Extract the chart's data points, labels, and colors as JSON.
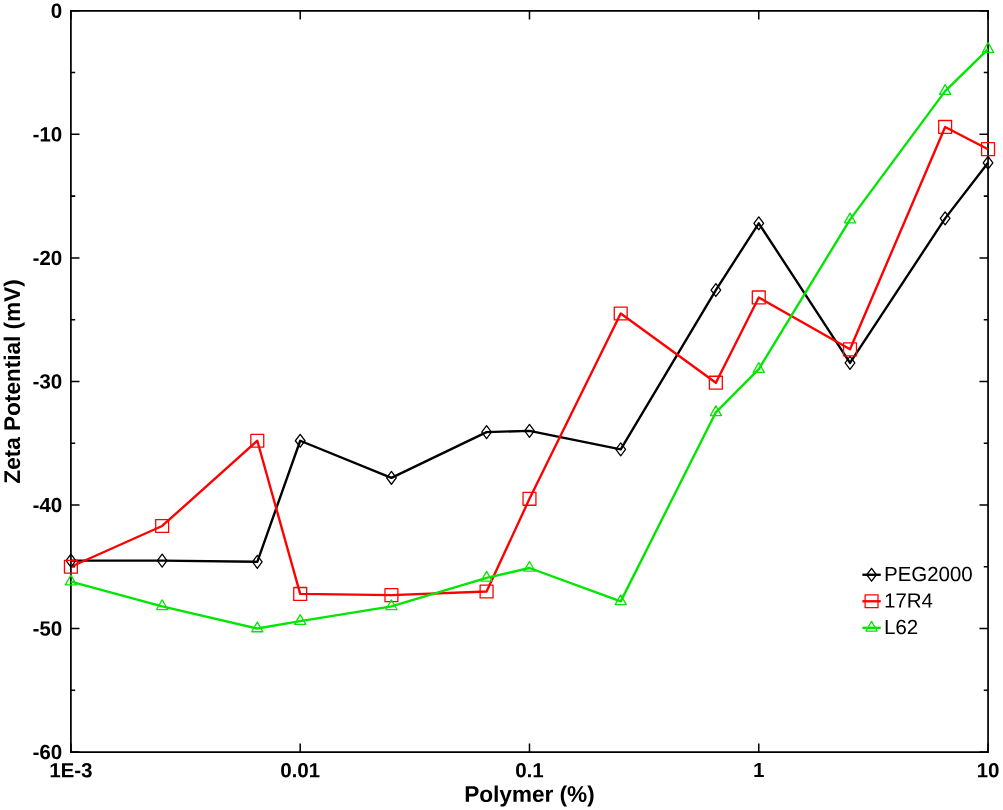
{
  "chart_data": {
    "type": "line",
    "xlabel": "Polymer (%)",
    "ylabel": "Zeta Potential (mV)",
    "log": "x",
    "x": [
      0.001,
      0.0025,
      0.0065,
      0.01,
      0.025,
      0.065,
      0.1,
      0.25,
      0.65,
      1,
      2.5,
      6.5,
      10
    ],
    "xlim": [
      0.001,
      10
    ],
    "ylim": [
      -60,
      0
    ],
    "xticks": [
      {
        "value": 0.001,
        "label": "1E-3"
      },
      0.01,
      0.1,
      1,
      10
    ],
    "yticks": [
      -60,
      -50,
      -40,
      -30,
      -20,
      -10,
      0
    ],
    "grid": false,
    "legend": "bottom right",
    "series": [
      {
        "name": "PEG2000",
        "color": "#000000",
        "marker": "diamond",
        "values": [
          -44.5,
          -44.5,
          -44.6,
          -34.8,
          -37.8,
          -34.1,
          -34.0,
          -35.5,
          -22.6,
          -17.2,
          -28.5,
          -16.8,
          -12.3
        ]
      },
      {
        "name": "17R4",
        "color": "#ff0000",
        "marker": "square",
        "values": [
          -45.0,
          -41.7,
          -34.8,
          -47.2,
          -47.3,
          -47.0,
          -39.5,
          -24.5,
          -30.1,
          -23.2,
          -27.4,
          -9.4,
          -11.2
        ]
      },
      {
        "name": "L62",
        "color": "#00e600",
        "marker": "triangle",
        "values": [
          -46.2,
          -48.2,
          -50.0,
          -49.4,
          -48.2,
          -45.9,
          -45.1,
          -47.8,
          -32.5,
          -29.0,
          -16.9,
          -6.5,
          -3.1
        ]
      }
    ]
  }
}
